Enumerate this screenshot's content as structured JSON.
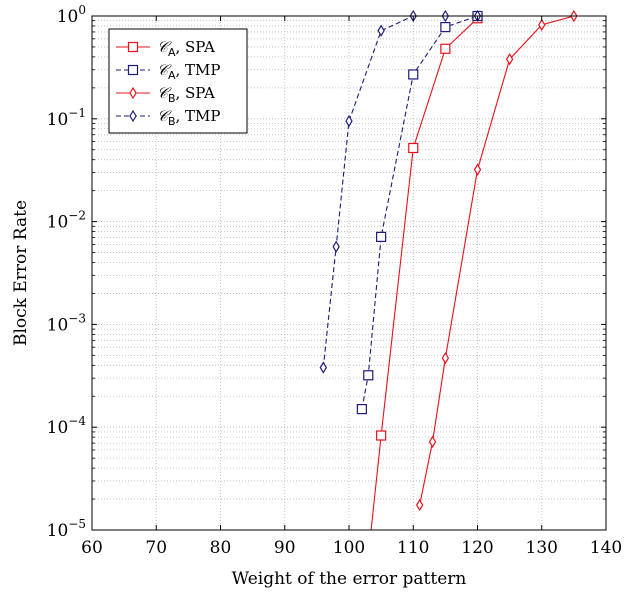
{
  "chart_data": {
    "type": "line",
    "xlabel": "Weight of the error pattern",
    "ylabel": "Block Error Rate",
    "xlim": [
      60,
      140
    ],
    "ylim": [
      1e-05,
      1
    ],
    "yscale": "log",
    "grid": true,
    "legend_position": "top-left",
    "x_ticks": [
      "60",
      "70",
      "80",
      "90",
      "100",
      "110",
      "120",
      "130",
      "140"
    ],
    "y_ticks": [
      {
        "value": 1e-05,
        "base": "10",
        "exp": "−5"
      },
      {
        "value": 0.0001,
        "base": "10",
        "exp": "−4"
      },
      {
        "value": 0.001,
        "base": "10",
        "exp": "−3"
      },
      {
        "value": 0.01,
        "base": "10",
        "exp": "−2"
      },
      {
        "value": 0.1,
        "base": "10",
        "exp": "−1"
      },
      {
        "value": 1,
        "base": "10",
        "exp": "0"
      }
    ],
    "series": [
      {
        "name": "𝒞A, SPA",
        "name_main": "𝒞",
        "name_sub": "A",
        "name_rest": ", SPA",
        "color": "#e8111a",
        "dash": "solid",
        "marker": "square",
        "x": [
          103,
          105,
          110,
          115,
          120
        ],
        "y": [
          5.5e-06,
          8.3e-05,
          0.052,
          0.48,
          0.95
        ]
      },
      {
        "name": "𝒞A, TMP",
        "name_main": "𝒞",
        "name_sub": "A",
        "name_rest": ", TMP",
        "color": "#1c1c7a",
        "dash": "dashed",
        "marker": "square",
        "x": [
          102,
          103,
          105,
          110,
          115,
          120
        ],
        "y": [
          0.00015,
          0.00032,
          0.0071,
          0.27,
          0.78,
          1.0
        ]
      },
      {
        "name": "𝒞B, SPA",
        "name_main": "𝒞",
        "name_sub": "B",
        "name_rest": ", SPA",
        "color": "#e8111a",
        "dash": "solid",
        "marker": "diamond",
        "x": [
          111,
          113,
          115,
          120,
          125,
          130,
          135
        ],
        "y": [
          1.75e-05,
          7.2e-05,
          0.00047,
          0.032,
          0.38,
          0.82,
          1.0
        ]
      },
      {
        "name": "𝒞B, TMP",
        "name_main": "𝒞",
        "name_sub": "B",
        "name_rest": ", TMP",
        "color": "#1c1c7a",
        "dash": "dashed",
        "marker": "diamond",
        "x": [
          96,
          98,
          100,
          105,
          110,
          115,
          120
        ],
        "y": [
          0.00038,
          0.0057,
          0.095,
          0.72,
          1.0,
          1.0,
          1.0
        ]
      }
    ]
  }
}
